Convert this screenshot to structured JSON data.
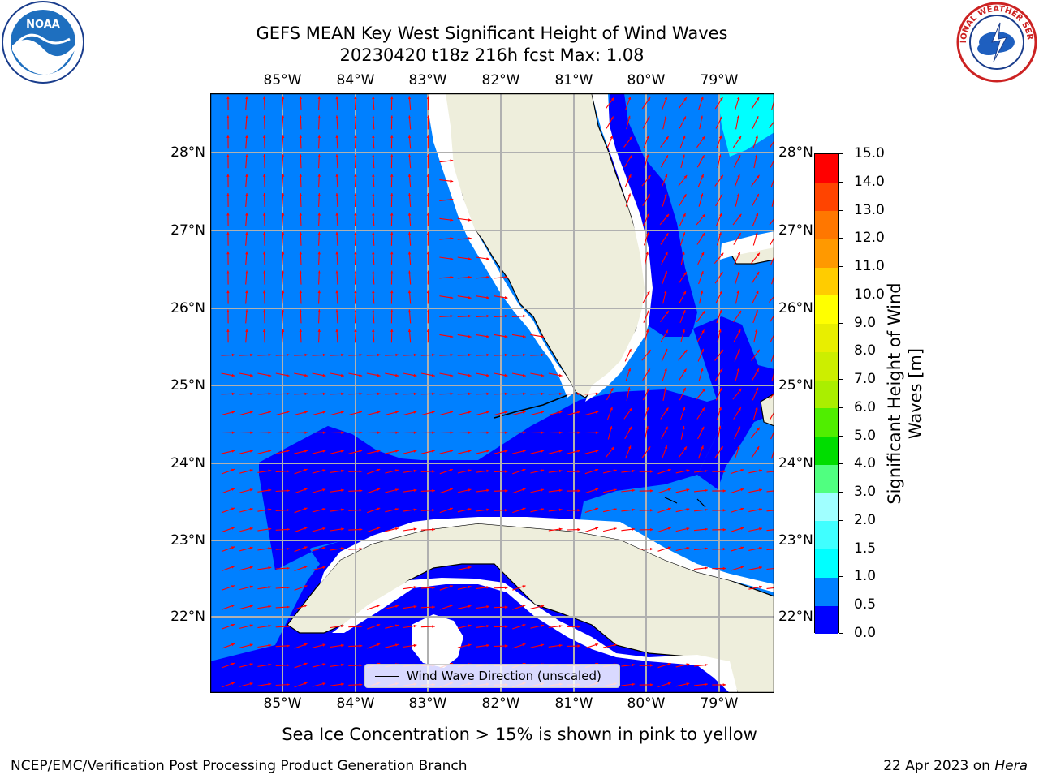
{
  "title_line1": "GEFS MEAN Key West Significant Height of Wind Waves",
  "title_line2": "20230420 t18z 216h fcst   Max: 1.08",
  "lon_labels": [
    "85°W",
    "84°W",
    "83°W",
    "82°W",
    "81°W",
    "80°W",
    "79°W"
  ],
  "lat_labels": [
    "28°N",
    "27°N",
    "26°N",
    "25°N",
    "24°N",
    "23°N",
    "22°N"
  ],
  "legend_label": "Wind Wave Direction (unscaled)",
  "colorbar": {
    "ticks": [
      "0.0",
      "0.5",
      "1.0",
      "1.5",
      "2.0",
      "3.0",
      "4.0",
      "5.0",
      "6.0",
      "7.0",
      "8.0",
      "9.0",
      "10.0",
      "11.0",
      "12.0",
      "13.0",
      "14.0",
      "15.0"
    ],
    "colors": [
      "#0000ff",
      "#0080ff",
      "#00ffff",
      "#40ffff",
      "#a0ffff",
      "#50ff80",
      "#00dd00",
      "#50ee00",
      "#aaee00",
      "#ccee00",
      "#e8ee00",
      "#ffff00",
      "#ffcc00",
      "#ff9900",
      "#ff7700",
      "#ff4400",
      "#ff0000"
    ],
    "label": "Significant Height of Wind Waves [m]"
  },
  "footer_note": "Sea Ice Concentration > 15% is shown in pink to yellow",
  "footer_left": "NCEP/EMC/Verification Post Processing Product Generation Branch",
  "footer_right_date": "22 Apr 2023 on",
  "footer_right_host": "Hera",
  "logo_left_text": "NOAA",
  "logo_right_text": "NATIONAL WEATHER SERVICE",
  "colors": {
    "ocean_mid": "#0080ff",
    "ocean_low": "#0000ff",
    "land": "#eeeedc",
    "arrow": "#ff0000",
    "grid": "#b0b0b0"
  }
}
